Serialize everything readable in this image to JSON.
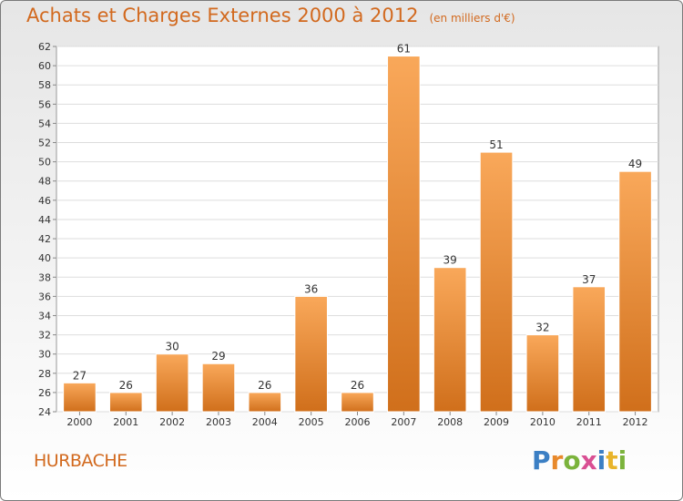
{
  "header": {
    "title": "Achats et Charges Externes 2000 à 2012",
    "subtitle": "(en milliers d'€)"
  },
  "footer": {
    "place": "HURBACHE",
    "logo": "Proxiti"
  },
  "colors": {
    "accent": "#d2691e",
    "bar_top": "#f9a85a",
    "bar_bottom": "#d06f1b"
  },
  "chart_data": {
    "type": "bar",
    "categories": [
      "2000",
      "2001",
      "2002",
      "2003",
      "2004",
      "2005",
      "2006",
      "2007",
      "2008",
      "2009",
      "2010",
      "2011",
      "2012"
    ],
    "values": [
      27,
      26,
      30,
      29,
      26,
      36,
      26,
      61,
      39,
      51,
      32,
      37,
      49
    ],
    "title": "Achats et Charges Externes 2000 à 2012",
    "ylim": [
      24,
      62
    ],
    "yticks": [
      24,
      26,
      28,
      30,
      32,
      34,
      36,
      38,
      40,
      42,
      44,
      46,
      48,
      50,
      52,
      54,
      56,
      58,
      60,
      62
    ],
    "grid": true,
    "legend": "none"
  }
}
